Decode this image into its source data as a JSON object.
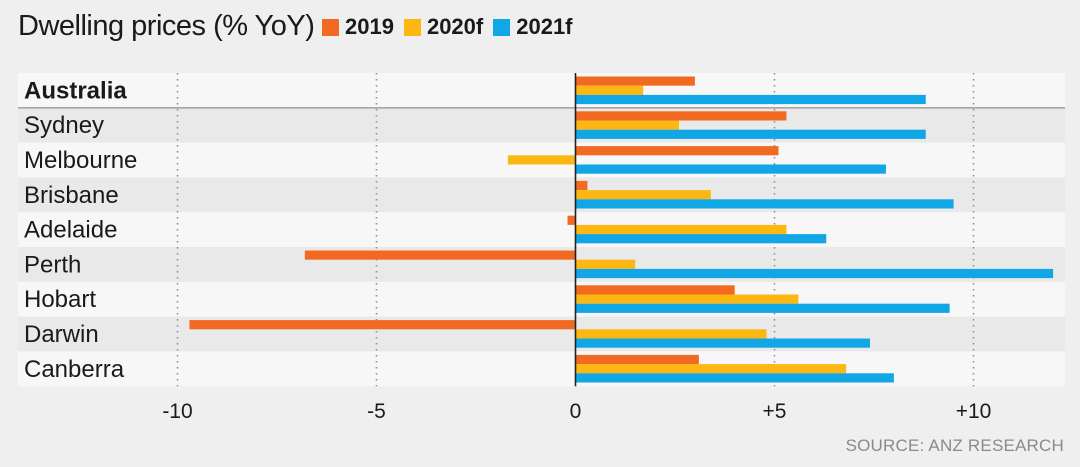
{
  "chart_data": {
    "type": "bar",
    "orientation": "horizontal",
    "title": "Dwelling prices (% YoY)",
    "categories": [
      "Australia",
      "Sydney",
      "Melbourne",
      "Brisbane",
      "Adelaide",
      "Perth",
      "Hobart",
      "Darwin",
      "Canberra"
    ],
    "highlight_category": "Australia",
    "series": [
      {
        "name": "2019",
        "color": "#f26a21",
        "values": [
          3.0,
          5.3,
          5.1,
          0.3,
          -0.2,
          -6.8,
          4.0,
          -9.7,
          3.1
        ]
      },
      {
        "name": "2020f",
        "color": "#fcb712",
        "values": [
          1.7,
          2.6,
          -1.7,
          3.4,
          5.3,
          1.5,
          5.6,
          4.8,
          6.8
        ]
      },
      {
        "name": "2021f",
        "color": "#11a6e6",
        "values": [
          8.8,
          8.8,
          7.8,
          9.5,
          6.3,
          12.0,
          9.4,
          7.4,
          8.0
        ]
      }
    ],
    "xlim": [
      -12,
      12
    ],
    "xticks": [
      -10,
      -5,
      0,
      5,
      10
    ],
    "xtick_labels": [
      "-10",
      "-5",
      "0",
      "+5",
      "+10"
    ],
    "grid": "vertical-dotted"
  },
  "source": "SOURCE: ANZ RESEARCH"
}
